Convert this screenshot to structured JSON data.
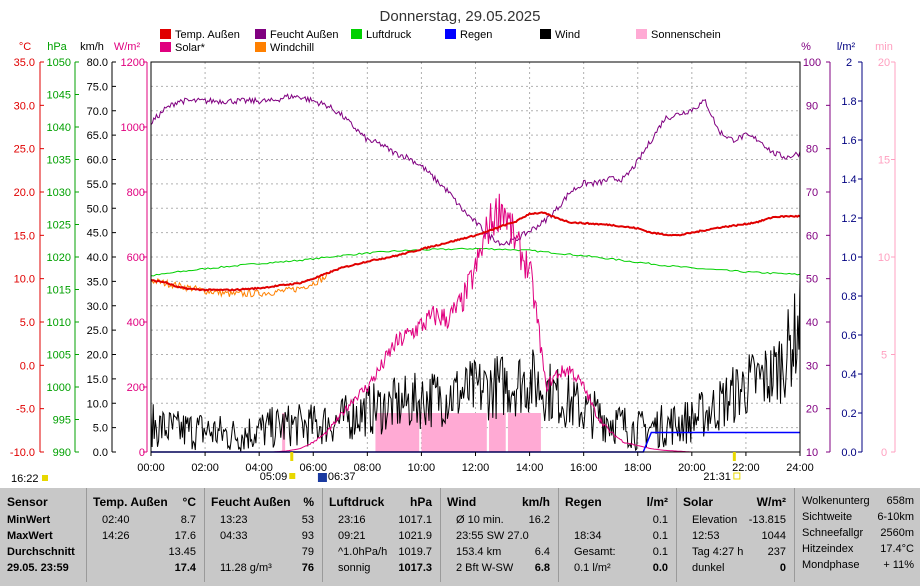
{
  "chart_data": {
    "type": "line",
    "title": "Donnerstag, 29.05.2025",
    "legend": [
      {
        "name": "Temp. Außen",
        "color": "#e00000"
      },
      {
        "name": "Feucht Außen",
        "color": "#800080"
      },
      {
        "name": "Luftdruck",
        "color": "#00d000"
      },
      {
        "name": "Regen",
        "color": "#0000ff"
      },
      {
        "name": "Wind",
        "color": "#000000"
      },
      {
        "name": "Sonnenschein",
        "color": "#ffaad4"
      },
      {
        "name": "Solar*",
        "color": "#e0007f"
      },
      {
        "name": "Windchill",
        "color": "#ff8000"
      }
    ],
    "axes": {
      "temp": {
        "unit": "°C",
        "color": "#e00000",
        "range": [
          -10,
          35
        ],
        "ticks": [
          "35.0",
          "30.0",
          "25.0",
          "20.0",
          "15.0",
          "10.0",
          "5.0",
          "0.0",
          "-5.0",
          "-10.0"
        ]
      },
      "pressure": {
        "unit": "hPa",
        "color": "#00a000",
        "range": [
          990,
          1050
        ],
        "ticks": [
          "1050",
          "1045",
          "1040",
          "1035",
          "1030",
          "1025",
          "1020",
          "1015",
          "1010",
          "1005",
          "1000",
          "995",
          "990"
        ]
      },
      "wind": {
        "unit": "km/h",
        "color": "#000000",
        "range": [
          0,
          80
        ],
        "ticks": [
          "80.0",
          "75.0",
          "70.0",
          "65.0",
          "60.0",
          "55.0",
          "50.0",
          "45.0",
          "40.0",
          "35.0",
          "30.0",
          "25.0",
          "20.0",
          "15.0",
          "10.0",
          "5.0",
          "0.0"
        ]
      },
      "solar": {
        "unit": "W/m²",
        "color": "#e0007f",
        "range": [
          0,
          1200
        ],
        "ticks": [
          "1200",
          "1000",
          "800",
          "600",
          "400",
          "200",
          "0"
        ]
      },
      "humidity": {
        "unit": "%",
        "color": "#800080",
        "range": [
          10,
          100
        ],
        "ticks": [
          "100",
          "90",
          "80",
          "70",
          "60",
          "50",
          "40",
          "30",
          "20",
          "10"
        ]
      },
      "rain": {
        "unit": "l/m²",
        "color": "#000080",
        "range": [
          0,
          2
        ],
        "ticks": [
          "2",
          "1.8",
          "1.6",
          "1.4",
          "1.2",
          "1.0",
          "0.8",
          "0.6",
          "0.4",
          "0.2",
          "0.0"
        ]
      },
      "sunshine": {
        "unit": "min",
        "color": "#ffa0c0",
        "range": [
          0,
          20
        ],
        "ticks": [
          "20",
          "15",
          "10",
          "5",
          "0"
        ]
      },
      "time": {
        "ticks": [
          "00:00",
          "02:00",
          "04:00",
          "06:00",
          "08:00",
          "10:00",
          "12:00",
          "14:00",
          "16:00",
          "18:00",
          "20:00",
          "22:00",
          "24:00"
        ]
      }
    },
    "grid": true,
    "markers": {
      "left_time": "16:22",
      "sunrise": "05:09",
      "moonrise": "06:37",
      "sunset": "21:31"
    },
    "series": [
      {
        "name": "Temp. Außen",
        "axis": "temp",
        "x": [
          0,
          0.5,
          1,
          1.5,
          2,
          2.5,
          3,
          3.5,
          4,
          4.5,
          5,
          5.5,
          6,
          6.5,
          7,
          7.5,
          8,
          8.5,
          9,
          9.5,
          10,
          10.5,
          11,
          11.5,
          12,
          12.5,
          13,
          13.5,
          14,
          14.5,
          15,
          15.5,
          16,
          16.5,
          17,
          17.5,
          18,
          18.5,
          19,
          19.5,
          20,
          20.5,
          21,
          21.5,
          22,
          22.5,
          23,
          23.5,
          24
        ],
        "y": [
          9.8,
          9.6,
          9.0,
          8.8,
          8.7,
          8.7,
          8.7,
          8.8,
          8.9,
          9.1,
          9.3,
          9.5,
          10.0,
          10.6,
          11.2,
          11.6,
          12.0,
          12.3,
          12.6,
          13.0,
          13.4,
          13.8,
          14.2,
          14.6,
          15.0,
          15.5,
          16.1,
          16.6,
          17.5,
          17.6,
          17.0,
          16.5,
          16.4,
          16.3,
          16.2,
          16.0,
          15.8,
          15.3,
          15.1,
          15.0,
          15.3,
          15.6,
          15.9,
          16.1,
          16.3,
          16.6,
          17.1,
          17.2,
          17.2
        ]
      },
      {
        "name": "Feucht Außen",
        "axis": "humidity",
        "x": [
          0,
          0.5,
          1,
          1.5,
          2,
          2.5,
          3,
          3.5,
          4,
          4.5,
          5,
          5.5,
          6,
          6.5,
          7,
          7.5,
          8,
          8.5,
          9,
          9.5,
          10,
          10.5,
          11,
          11.5,
          12,
          12.5,
          13,
          13.5,
          14,
          14.5,
          15,
          15.5,
          16,
          16.5,
          17,
          17.5,
          18,
          18.5,
          19,
          19.5,
          20,
          20.5,
          21,
          21.5,
          22,
          22.5,
          23,
          23.5,
          24
        ],
        "y": [
          86,
          89,
          91,
          91,
          91,
          91,
          91,
          91,
          91,
          91,
          92,
          92,
          91,
          90,
          88,
          85,
          82,
          81,
          79,
          78,
          76,
          73,
          70,
          66,
          63,
          60,
          58,
          59,
          61,
          63,
          66,
          70,
          72,
          72,
          73,
          73,
          77,
          82,
          87,
          88,
          89,
          91,
          84,
          82,
          83,
          82,
          79,
          78,
          79
        ]
      },
      {
        "name": "Luftdruck",
        "axis": "pressure",
        "x": [
          0,
          1,
          2,
          3,
          4,
          5,
          6,
          7,
          8,
          9,
          10,
          11,
          12,
          13,
          14,
          15,
          16,
          17,
          18,
          19,
          20,
          21,
          22,
          23,
          24
        ],
        "y": [
          1017.1,
          1017.7,
          1018.2,
          1018.6,
          1019.0,
          1019.3,
          1019.7,
          1020.2,
          1020.6,
          1020.9,
          1021.1,
          1021.2,
          1021.3,
          1021.2,
          1021.0,
          1020.6,
          1020.2,
          1019.7,
          1019.2,
          1018.7,
          1018.3,
          1018.0,
          1017.7,
          1017.5,
          1017.3
        ]
      },
      {
        "name": "Windchill",
        "axis": "temp",
        "x": [
          0,
          1,
          2,
          3,
          4,
          5,
          5.5,
          6,
          6.5
        ],
        "y": [
          9.8,
          9.2,
          8.6,
          8.2,
          8.3,
          8.6,
          8.9,
          9.5,
          10.2
        ]
      },
      {
        "name": "Solar*",
        "axis": "solar",
        "x": [
          0,
          4.5,
          5,
          5.5,
          6,
          6.5,
          7,
          7.5,
          8,
          8.5,
          9,
          9.5,
          10,
          10.5,
          11,
          11.5,
          12,
          12.5,
          13,
          13.5,
          14,
          14.3,
          14.6,
          15,
          15.5,
          16,
          16.5,
          17,
          17.5,
          18,
          18.5,
          19,
          20,
          24
        ],
        "y": [
          0,
          0,
          3,
          10,
          30,
          60,
          110,
          165,
          200,
          260,
          330,
          360,
          390,
          420,
          410,
          460,
          560,
          700,
          760,
          640,
          560,
          400,
          200,
          240,
          255,
          200,
          110,
          60,
          30,
          20,
          10,
          5,
          0,
          0
        ]
      },
      {
        "name": "Wind",
        "axis": "wind",
        "x": [
          0,
          1,
          2,
          3,
          4,
          5,
          6,
          7,
          8,
          9,
          10,
          11,
          12,
          13,
          14,
          15,
          16,
          17,
          18,
          19,
          20,
          21,
          22,
          23,
          23.5,
          24
        ],
        "y": [
          5,
          4,
          4,
          3,
          4,
          5,
          5,
          6,
          8,
          9,
          10,
          11,
          12,
          13,
          14,
          11,
          8,
          6,
          4,
          5,
          6,
          9,
          13,
          15,
          19,
          25
        ]
      },
      {
        "name": "Sonnenschein",
        "axis": "sunshine",
        "x": [
          8.2,
          8.5,
          9,
          9.5,
          10,
          10.5,
          11,
          11.5,
          12,
          12.5,
          13,
          13.5,
          14,
          14.3
        ],
        "y": [
          2,
          2,
          2,
          2,
          2,
          2,
          2,
          2,
          2,
          2,
          2,
          2,
          2,
          2
        ]
      },
      {
        "name": "Regen",
        "axis": "rain",
        "x": [
          0,
          18.2,
          18.5,
          24
        ],
        "y": [
          0,
          0,
          0.1,
          0.1
        ]
      }
    ]
  },
  "table": {
    "sensor": {
      "header": "Sensor",
      "rows": [
        "MinWert",
        "MaxWert",
        "Durchschnitt",
        "29.05. 23:59"
      ]
    },
    "temp": {
      "header": "Temp. Außen",
      "unit": "°C",
      "rows": [
        [
          "02:40",
          "8.7"
        ],
        [
          "14:26",
          "17.6"
        ],
        [
          "",
          "13.45"
        ],
        [
          "",
          "17.4"
        ]
      ]
    },
    "hum": {
      "header": "Feucht Außen",
      "unit": "%",
      "rows": [
        [
          "13:23",
          "53"
        ],
        [
          "04:33",
          "93"
        ],
        [
          "",
          "79"
        ],
        [
          "11.28 g/m³",
          "76"
        ]
      ]
    },
    "press": {
      "header": "Luftdruck",
      "unit": "hPa",
      "rows": [
        [
          "23:16",
          "1017.1"
        ],
        [
          "09:21",
          "1021.9"
        ],
        [
          "^1.0hPa/h",
          "1019.7"
        ],
        [
          "sonnig",
          "1017.3"
        ]
      ]
    },
    "wind": {
      "header": "Wind",
      "unit": "km/h",
      "rows": [
        [
          "Ø 10 min.",
          "16.2"
        ],
        [
          "23:55  SW 27.0",
          ""
        ],
        [
          "153.4 km",
          "6.4"
        ],
        [
          "2 Bft W-SW",
          "6.8"
        ]
      ]
    },
    "rain": {
      "header": "Regen",
      "unit": "l/m²",
      "rows": [
        [
          "",
          "0.1"
        ],
        [
          "18:34",
          "0.1"
        ],
        [
          "Gesamt:",
          "0.1"
        ],
        [
          "0.1 l/m²",
          "0.0"
        ]
      ]
    },
    "solar": {
      "header": "Solar",
      "unit": "W/m²",
      "rows": [
        [
          "Elevation",
          "-13.815"
        ],
        [
          "12:53",
          "1044"
        ],
        [
          "Tag 4:27 h",
          "237"
        ],
        [
          "dunkel",
          "0"
        ]
      ]
    },
    "extra": {
      "rows": [
        [
          "Wolkenunterg",
          "658m"
        ],
        [
          "Sichtweite",
          "6-10km"
        ],
        [
          "Schneefallgr",
          "2560m"
        ],
        [
          "Hitzeindex",
          "17.4°C"
        ],
        [
          "Mondphase",
          "+ 11%"
        ]
      ]
    }
  }
}
